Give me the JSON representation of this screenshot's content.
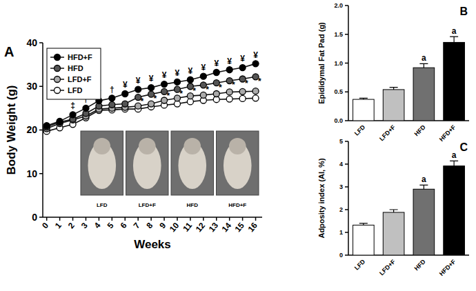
{
  "chart_data": [
    {
      "type": "line",
      "title": "A",
      "x_label": "Weeks",
      "y_label": "Body Weight (g)",
      "x": [
        0,
        1,
        2,
        3,
        4,
        5,
        6,
        7,
        8,
        9,
        10,
        11,
        12,
        13,
        14,
        15,
        16
      ],
      "xlim": [
        -0.3,
        16.5
      ],
      "xticks": [
        0,
        1,
        2,
        3,
        4,
        5,
        6,
        7,
        8,
        9,
        10,
        11,
        12,
        13,
        14,
        15,
        16
      ],
      "ylim": [
        0,
        40
      ],
      "yticks": [
        0,
        10,
        20,
        30,
        40
      ],
      "grid": false,
      "legend": "upper left",
      "marker": "circle",
      "line_style": "solid",
      "series": [
        {
          "name": "HFD+F",
          "color": "#000000",
          "values": [
            21.0,
            22.0,
            23.5,
            25.0,
            26.7,
            27.3,
            28.3,
            29.3,
            29.7,
            30.5,
            31.0,
            31.5,
            32.3,
            33.2,
            33.8,
            34.3,
            35.2
          ],
          "errors": [
            0.4,
            0.4,
            0.4,
            0.5,
            0.5,
            0.5,
            0.5,
            0.5,
            0.5,
            0.5,
            0.5,
            0.6,
            0.6,
            0.6,
            0.8,
            0.7,
            0.7
          ]
        },
        {
          "name": "HFD",
          "color": "#555555",
          "values": [
            20.7,
            21.8,
            22.5,
            23.8,
            25.5,
            25.8,
            26.0,
            27.5,
            28.2,
            28.8,
            29.3,
            30.0,
            30.3,
            30.8,
            31.3,
            31.7,
            32.2
          ],
          "errors": [
            0.4,
            0.4,
            0.4,
            0.4,
            0.5,
            0.5,
            0.5,
            0.5,
            0.5,
            0.5,
            0.5,
            0.5,
            0.6,
            0.6,
            0.6,
            0.6,
            0.6
          ]
        },
        {
          "name": "LFD+F",
          "color": "#aaaaaa",
          "values": [
            20.3,
            21.5,
            22.3,
            23.2,
            24.8,
            25.0,
            25.2,
            25.5,
            26.0,
            26.8,
            27.3,
            27.8,
            28.0,
            28.3,
            28.7,
            28.8,
            28.9
          ],
          "errors": [
            0.3,
            0.3,
            0.3,
            0.4,
            0.4,
            0.4,
            0.4,
            0.4,
            0.4,
            0.4,
            0.4,
            0.4,
            0.4,
            0.5,
            0.5,
            0.5,
            0.5
          ]
        },
        {
          "name": "LFD",
          "color": "#ffffff",
          "values": [
            19.7,
            20.5,
            21.3,
            22.8,
            24.5,
            24.6,
            24.8,
            24.8,
            25.3,
            25.7,
            26.0,
            26.5,
            26.8,
            27.0,
            27.1,
            27.2,
            27.3
          ],
          "errors": [
            0.3,
            0.3,
            0.3,
            0.3,
            0.4,
            0.4,
            0.4,
            0.4,
            0.4,
            0.4,
            0.4,
            0.4,
            0.4,
            0.4,
            0.4,
            0.4,
            0.4
          ]
        }
      ],
      "annotations": [
        {
          "text": "‡",
          "x": 2,
          "y": 25.6
        },
        {
          "text": "†",
          "x": 3,
          "y": 27.0
        },
        {
          "text": "†",
          "x": 4,
          "y": 28.7
        },
        {
          "text": "†",
          "x": 5,
          "y": 29.3
        },
        {
          "text": "¥",
          "x": 6,
          "y": 30.3
        },
        {
          "text": "¥",
          "x": 7,
          "y": 31.3
        },
        {
          "text": "¥",
          "x": 8,
          "y": 31.7
        },
        {
          "text": "¥",
          "x": 9,
          "y": 32.5
        },
        {
          "text": "¥",
          "x": 10,
          "y": 33.0
        },
        {
          "text": "¥",
          "x": 11,
          "y": 33.5
        },
        {
          "text": "¥",
          "x": 12,
          "y": 34.3
        },
        {
          "text": "¥",
          "x": 13,
          "y": 35.2
        },
        {
          "text": "¥",
          "x": 14,
          "y": 35.8
        },
        {
          "text": "¥",
          "x": 15,
          "y": 36.3
        },
        {
          "text": "¥",
          "x": 16,
          "y": 37.2
        },
        {
          "text": "*",
          "x": 7.3,
          "y": 26.5
        },
        {
          "text": "*",
          "x": 8.3,
          "y": 27.2
        },
        {
          "text": "*",
          "x": 9.3,
          "y": 27.8
        },
        {
          "text": "*",
          "x": 10.3,
          "y": 28.3
        },
        {
          "text": "*",
          "x": 11.3,
          "y": 29.0
        },
        {
          "text": "*",
          "x": 12.3,
          "y": 29.3
        },
        {
          "text": "*",
          "x": 13.3,
          "y": 29.8
        },
        {
          "text": "*",
          "x": 14.3,
          "y": 30.3
        },
        {
          "text": "*",
          "x": 15.3,
          "y": 30.7
        },
        {
          "text": "*",
          "x": 16.3,
          "y": 31.2
        }
      ],
      "inset_labels": [
        "LFD",
        "LFD+F",
        "HFD",
        "HFD+F"
      ]
    },
    {
      "type": "bar",
      "title": "B",
      "y_label": "Epididymal Fat Pad (g)",
      "categories": [
        "LFD",
        "LFD+F",
        "HFD",
        "HFD+F"
      ],
      "values": [
        0.37,
        0.54,
        0.92,
        1.36
      ],
      "errors": [
        0.02,
        0.04,
        0.07,
        0.1
      ],
      "colors": [
        "#ffffff",
        "#c0c0c0",
        "#707070",
        "#000000"
      ],
      "annotations": [
        null,
        null,
        "a",
        "a"
      ],
      "ylim": [
        0,
        2
      ],
      "yticks": [
        {
          "value": 0,
          "label": "0.0"
        },
        {
          "value": 0.5,
          "label": "0.5"
        },
        {
          "value": 1,
          "label": "1.0"
        },
        {
          "value": 1.5,
          "label": "1.5"
        },
        {
          "value": 2,
          "label": "2.0"
        }
      ],
      "grid": false
    },
    {
      "type": "bar",
      "title": "C",
      "y_label": "Adposity index (AI, %)",
      "categories": [
        "LFD",
        "LFD+F",
        "HFD",
        "HFD+F"
      ],
      "values": [
        1.32,
        1.88,
        2.9,
        3.92
      ],
      "errors": [
        0.08,
        0.12,
        0.18,
        0.22
      ],
      "colors": [
        "#ffffff",
        "#c0c0c0",
        "#707070",
        "#000000"
      ],
      "annotations": [
        null,
        null,
        "a",
        "a"
      ],
      "ylim": [
        0,
        5
      ],
      "yticks": [
        0,
        1,
        2,
        3,
        4,
        5
      ],
      "grid": false
    }
  ]
}
